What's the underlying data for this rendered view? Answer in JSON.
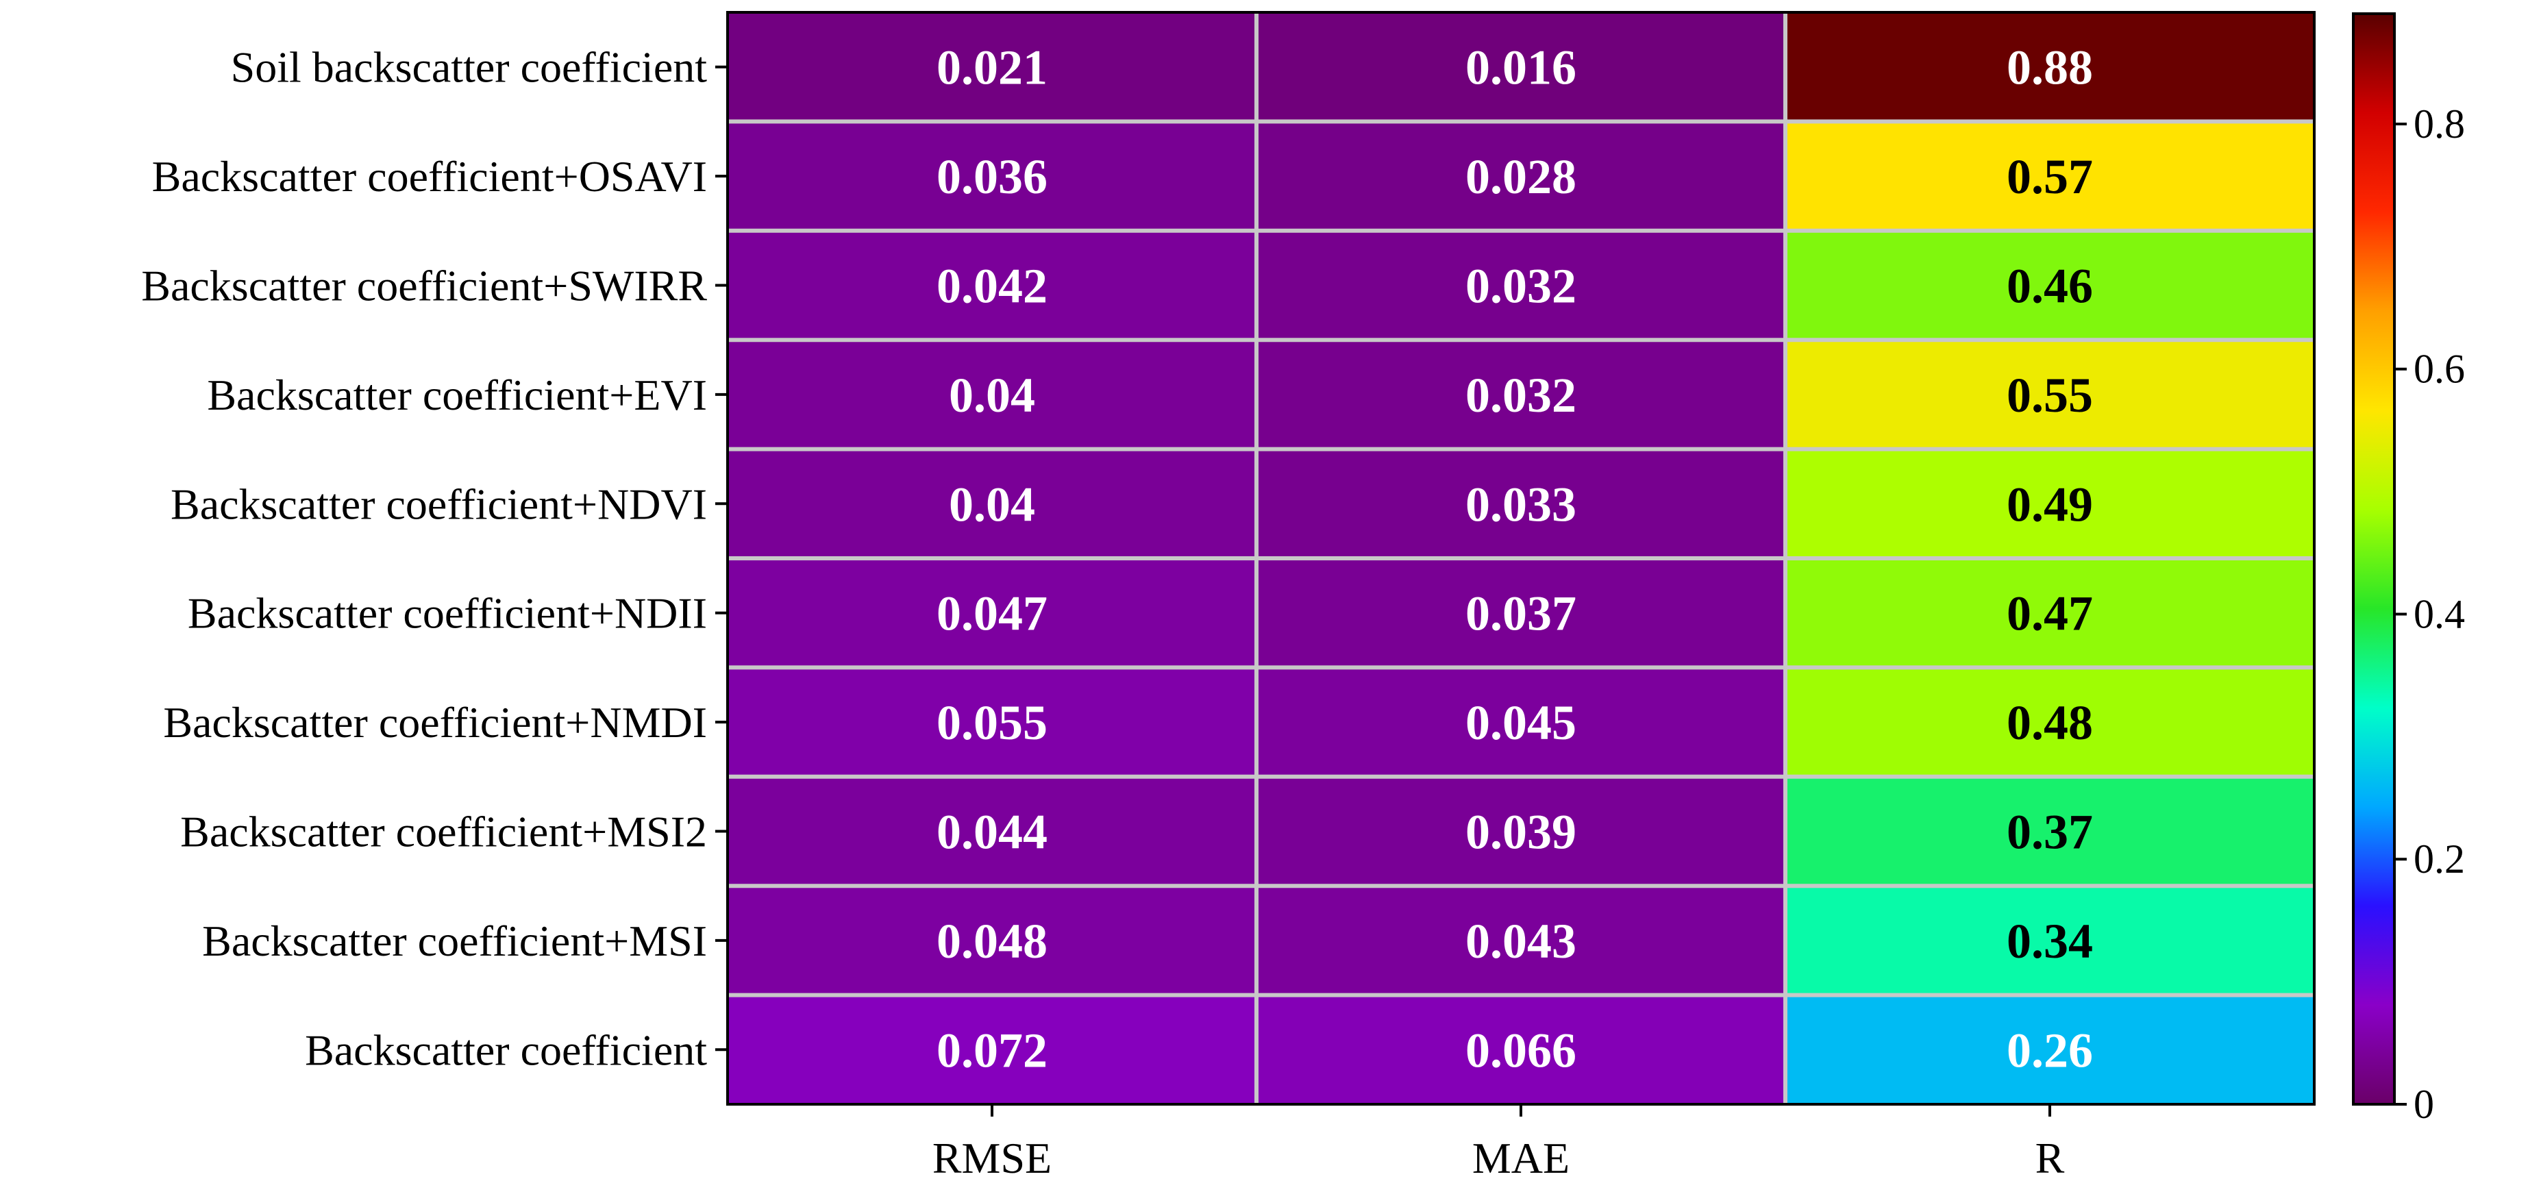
{
  "chart_data": {
    "type": "heatmap",
    "title": "",
    "xlabel": "",
    "ylabel": "",
    "columns": [
      "RMSE",
      "MAE",
      "R"
    ],
    "rows": [
      "Soil backscatter coefficient",
      "Backscatter coefficient+OSAVI",
      "Backscatter coefficient+SWIRR",
      "Backscatter coefficient+EVI",
      "Backscatter coefficient+NDVI",
      "Backscatter coefficient+NDII",
      "Backscatter coefficient+NMDI",
      "Backscatter coefficient+MSI2",
      "Backscatter coefficient+MSI",
      "Backscatter coefficient"
    ],
    "values": [
      [
        "0.021",
        "0.016",
        "0.88"
      ],
      [
        "0.036",
        "0.028",
        "0.57"
      ],
      [
        "0.042",
        "0.032",
        "0.46"
      ],
      [
        "0.04",
        "0.032",
        "0.55"
      ],
      [
        "0.04",
        "0.033",
        "0.49"
      ],
      [
        "0.047",
        "0.037",
        "0.47"
      ],
      [
        "0.055",
        "0.045",
        "0.48"
      ],
      [
        "0.044",
        "0.039",
        "0.37"
      ],
      [
        "0.048",
        "0.043",
        "0.34"
      ],
      [
        "0.072",
        "0.066",
        "0.26"
      ]
    ],
    "colorbar": {
      "range": [
        0,
        0.89
      ],
      "ticks": [
        "0",
        "0.2",
        "0.4",
        "0.6",
        "0.8"
      ],
      "tick_values": [
        0,
        0.2,
        0.4,
        0.6,
        0.8
      ],
      "colormap": [
        "#6a0068",
        "#8a00c8",
        "#2a10ff",
        "#00a8ff",
        "#00ffc8",
        "#28e628",
        "#a8ff00",
        "#ffe600",
        "#ffa000",
        "#ff2800",
        "#d20000",
        "#5a0000"
      ]
    }
  }
}
